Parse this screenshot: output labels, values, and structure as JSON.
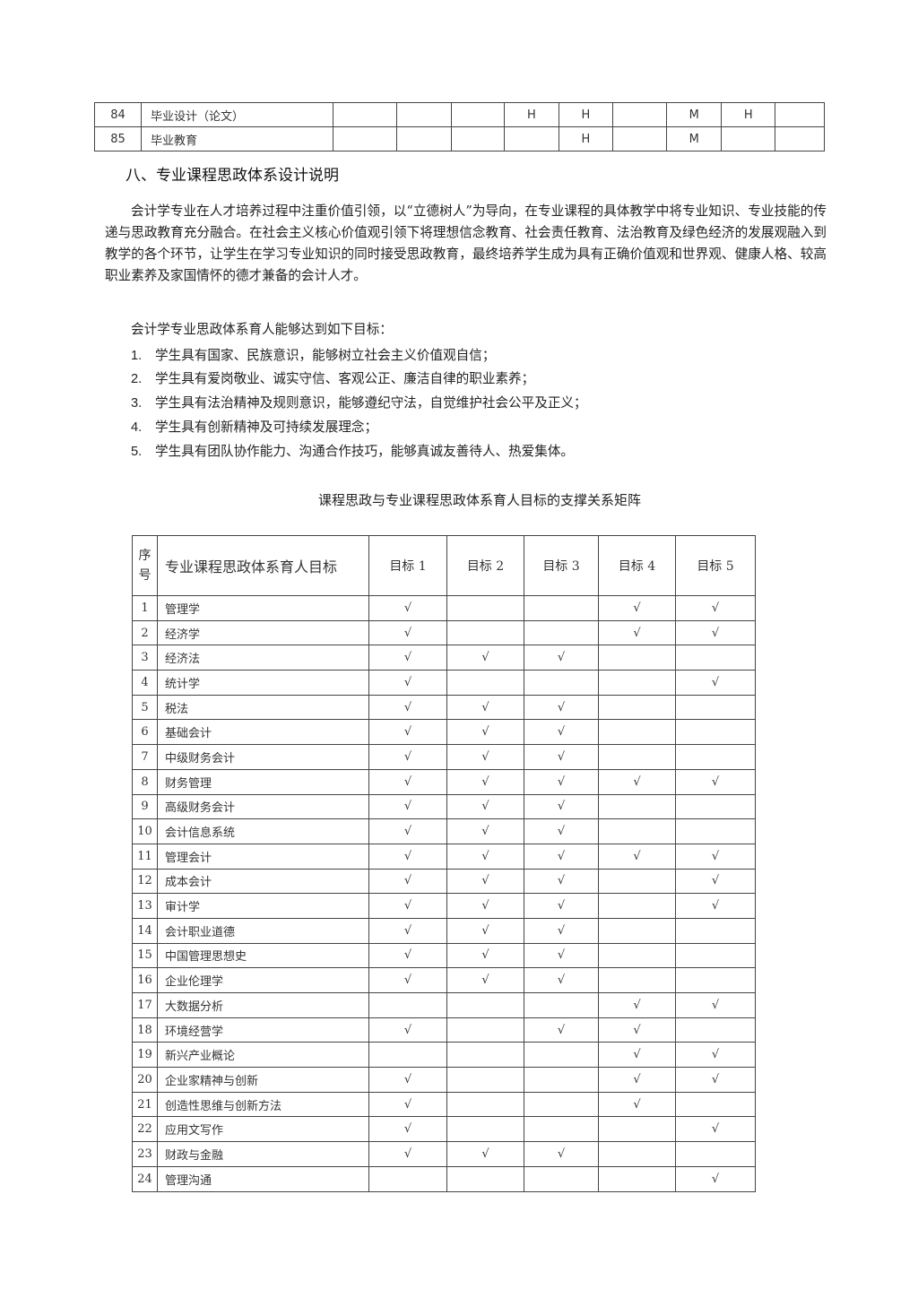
{
  "top_table": {
    "rows": [
      {
        "no": "84",
        "name": "毕业设计（论文）",
        "cells": [
          "",
          "",
          "",
          "H",
          "H",
          "",
          "M",
          "H",
          ""
        ]
      },
      {
        "no": "85",
        "name": "毕业教育",
        "cells": [
          "",
          "",
          "",
          "",
          "H",
          "",
          "M",
          "",
          ""
        ]
      }
    ]
  },
  "section_heading": "八、专业课程思政体系设计说明",
  "paragraph1": "会计学专业在人才培养过程中注重价值引领，以“立德树人”为导向，在专业课程的具体教学中将专业知识、专业技能的传递与思政教育充分融合。在社会主义核心价值观引领下将理想信念教育、社会责任教育、法治教育及绿色经济的发展观融入到教学的各个环节，让学生在学习专业知识的同时接受思政教育，最终培养学生成为具有正确价值观和世界观、健康人格、较高职业素养及家国情怀的德才兼备的会计人才。",
  "paragraph2": "会计学专业思政体系育人能够达到如下目标：",
  "goals": [
    {
      "n": "1.",
      "text": "学生具有国家、民族意识，能够树立社会主义价值观自信；"
    },
    {
      "n": "2.",
      "text": "学生具有爱岗敬业、诚实守信、客观公正、廉洁自律的职业素养；"
    },
    {
      "n": "3.",
      "text": "学生具有法治精神及规则意识，能够遵纪守法，自觉维护社会公平及正义；"
    },
    {
      "n": "4.",
      "text": "学生具有创新精神及可持续发展理念；"
    },
    {
      "n": "5.",
      "text": "学生具有团队协作能力、沟通合作技巧，能够真诚友善待人、热爱集体。"
    }
  ],
  "matrix": {
    "caption": "课程思政与专业课程思政体系育人目标的支撑关系矩阵",
    "header": {
      "no": "序号",
      "name": "专业课程思政体系育人目标",
      "goals": [
        "目标 1",
        "目标 2",
        "目标 3",
        "目标 4",
        "目标 5"
      ]
    },
    "mark": "√",
    "rows": [
      {
        "no": "1",
        "name": "管理学",
        "marks": [
          1,
          0,
          0,
          1,
          1
        ]
      },
      {
        "no": "2",
        "name": "经济学",
        "marks": [
          1,
          0,
          0,
          1,
          1
        ]
      },
      {
        "no": "3",
        "name": "经济法",
        "marks": [
          1,
          1,
          1,
          0,
          0
        ]
      },
      {
        "no": "4",
        "name": "统计学",
        "marks": [
          1,
          0,
          0,
          0,
          1
        ]
      },
      {
        "no": "5",
        "name": "税法",
        "marks": [
          1,
          1,
          1,
          0,
          0
        ]
      },
      {
        "no": "6",
        "name": "基础会计",
        "marks": [
          1,
          1,
          1,
          0,
          0
        ]
      },
      {
        "no": "7",
        "name": "中级财务会计",
        "marks": [
          1,
          1,
          1,
          0,
          0
        ]
      },
      {
        "no": "8",
        "name": "财务管理",
        "marks": [
          1,
          1,
          1,
          1,
          1
        ]
      },
      {
        "no": "9",
        "name": "高级财务会计",
        "marks": [
          1,
          1,
          1,
          0,
          0
        ]
      },
      {
        "no": "10",
        "name": "会计信息系统",
        "marks": [
          1,
          1,
          1,
          0,
          0
        ]
      },
      {
        "no": "11",
        "name": "管理会计",
        "marks": [
          1,
          1,
          1,
          1,
          1
        ]
      },
      {
        "no": "12",
        "name": "成本会计",
        "marks": [
          1,
          1,
          1,
          0,
          1
        ]
      },
      {
        "no": "13",
        "name": "审计学",
        "marks": [
          1,
          1,
          1,
          0,
          1
        ]
      },
      {
        "no": "14",
        "name": "会计职业道德",
        "marks": [
          1,
          1,
          1,
          0,
          0
        ]
      },
      {
        "no": "15",
        "name": "中国管理思想史",
        "marks": [
          1,
          1,
          1,
          0,
          0
        ]
      },
      {
        "no": "16",
        "name": "企业伦理学",
        "marks": [
          1,
          1,
          1,
          0,
          0
        ]
      },
      {
        "no": "17",
        "name": "大数据分析",
        "marks": [
          0,
          0,
          0,
          1,
          1
        ]
      },
      {
        "no": "18",
        "name": "环境经营学",
        "marks": [
          1,
          0,
          1,
          1,
          0
        ]
      },
      {
        "no": "19",
        "name": "新兴产业概论",
        "marks": [
          0,
          0,
          0,
          1,
          1
        ]
      },
      {
        "no": "20",
        "name": "企业家精神与创新",
        "marks": [
          1,
          0,
          0,
          1,
          1
        ]
      },
      {
        "no": "21",
        "name": "创造性思维与创新方法",
        "marks": [
          1,
          0,
          0,
          1,
          0
        ]
      },
      {
        "no": "22",
        "name": "应用文写作",
        "marks": [
          1,
          0,
          0,
          0,
          1
        ]
      },
      {
        "no": "23",
        "name": "财政与金融",
        "marks": [
          1,
          1,
          1,
          0,
          0
        ]
      },
      {
        "no": "24",
        "name": "管理沟通",
        "marks": [
          0,
          0,
          0,
          0,
          1
        ]
      }
    ]
  }
}
